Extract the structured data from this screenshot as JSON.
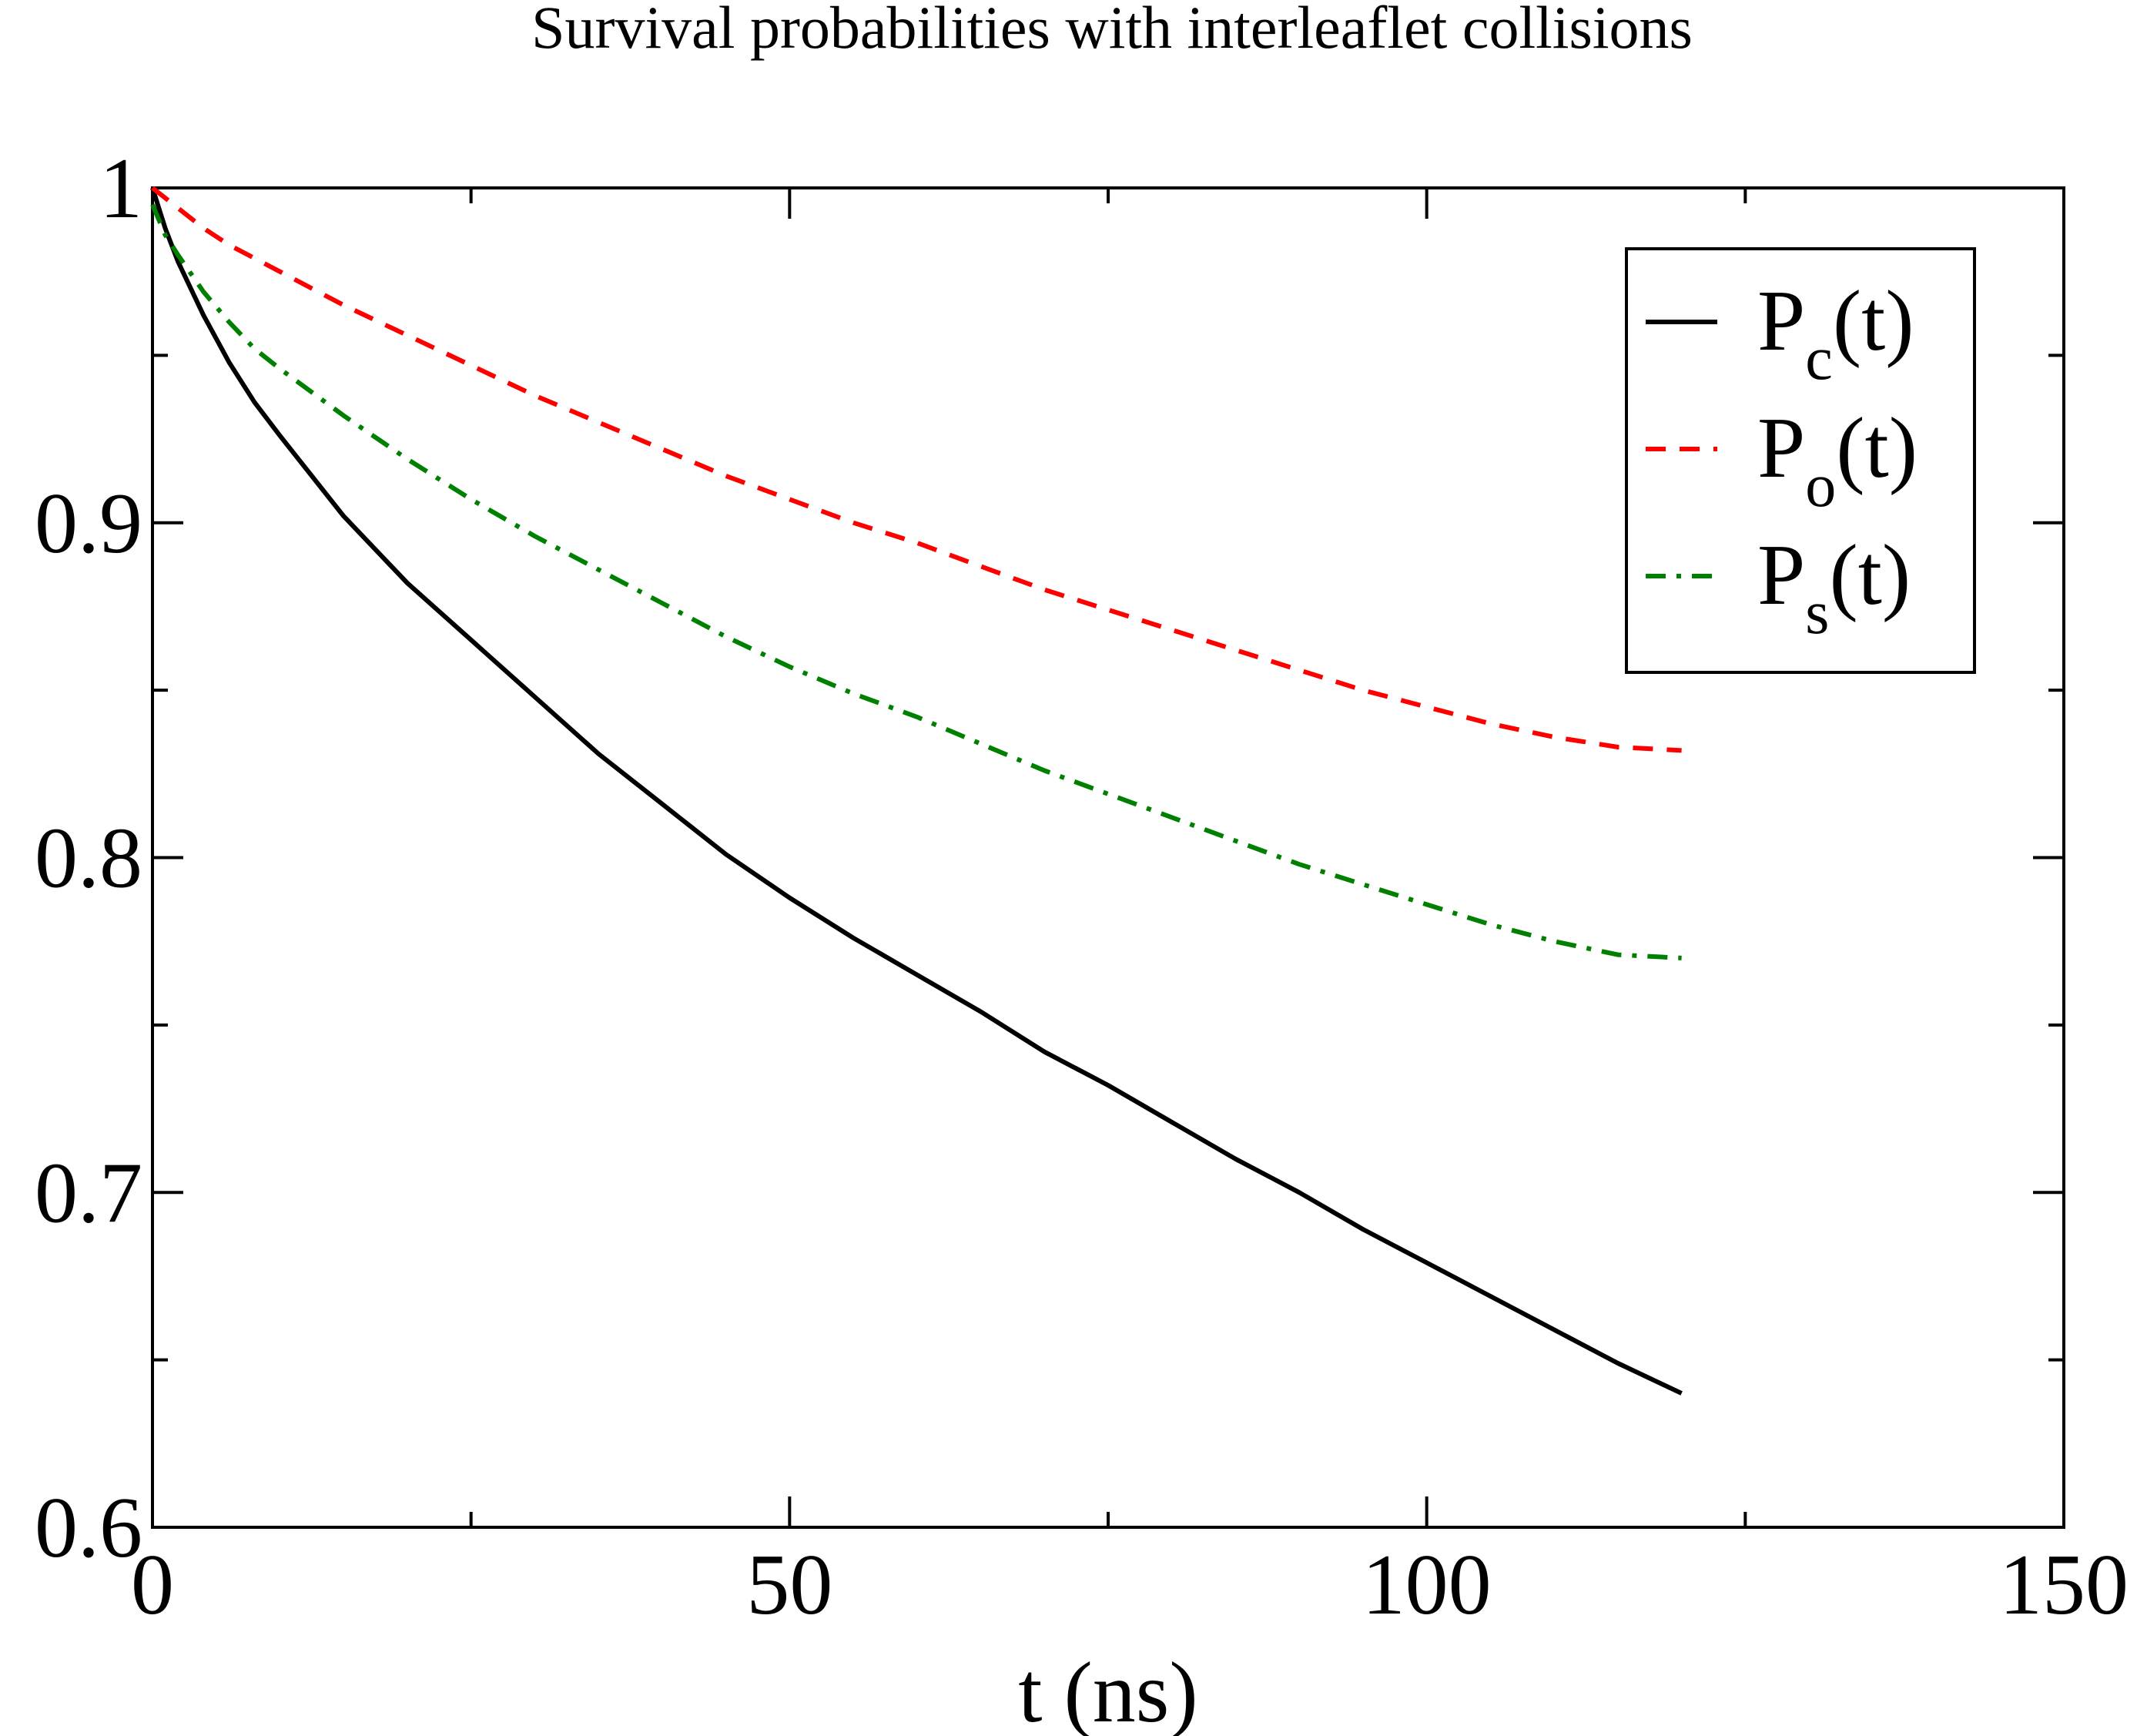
{
  "chart_data": {
    "type": "line",
    "title": "Survival probabilities with interleaflet collisions",
    "xlabel": "t (ns)",
    "ylabel": "",
    "xlim": [
      0,
      150
    ],
    "ylim": [
      0.6,
      1.0
    ],
    "x_major_ticks": [
      0,
      50,
      100,
      150
    ],
    "x_tick_labels": [
      "0",
      "50",
      "100",
      "150"
    ],
    "x_minor_ticks": [
      25,
      75,
      125
    ],
    "y_major_ticks": [
      0.6,
      0.7,
      0.8,
      0.9,
      1.0
    ],
    "y_tick_labels": [
      "0.6",
      "0.7",
      "0.8",
      "0.9",
      "1"
    ],
    "y_minor_ticks": [
      0.65,
      0.75,
      0.85,
      0.95
    ],
    "grid": false,
    "legend_position": "top-right",
    "series": [
      {
        "name": "Pc(t)",
        "label_main": "P",
        "label_sub": "c",
        "label_tail": "(t)",
        "color": "#000000",
        "dash": "solid",
        "x": [
          0,
          1,
          2,
          4,
          6,
          8,
          10,
          15,
          20,
          25,
          30,
          35,
          40,
          45,
          50,
          55,
          60,
          65,
          70,
          75,
          80,
          85,
          90,
          95,
          100,
          105,
          110,
          115,
          120
        ],
        "y": [
          1.0,
          0.988,
          0.978,
          0.962,
          0.948,
          0.936,
          0.926,
          0.902,
          0.882,
          0.865,
          0.848,
          0.831,
          0.816,
          0.801,
          0.788,
          0.776,
          0.765,
          0.754,
          0.742,
          0.732,
          0.721,
          0.71,
          0.7,
          0.689,
          0.679,
          0.669,
          0.659,
          0.649,
          0.64
        ]
      },
      {
        "name": "Po(t)",
        "label_main": "P",
        "label_sub": "o",
        "label_tail": "(t)",
        "color": "#ff0000",
        "dash": "dashed",
        "x": [
          0,
          1,
          2,
          4,
          6,
          8,
          10,
          15,
          20,
          25,
          30,
          35,
          40,
          45,
          50,
          55,
          60,
          65,
          70,
          75,
          80,
          85,
          90,
          95,
          100,
          105,
          110,
          115,
          120
        ],
        "y": [
          1.0,
          0.997,
          0.994,
          0.988,
          0.983,
          0.979,
          0.975,
          0.965,
          0.956,
          0.947,
          0.938,
          0.93,
          0.922,
          0.914,
          0.907,
          0.9,
          0.894,
          0.887,
          0.88,
          0.874,
          0.868,
          0.862,
          0.856,
          0.85,
          0.845,
          0.84,
          0.836,
          0.833,
          0.832
        ]
      },
      {
        "name": "Ps(t)",
        "label_main": "P",
        "label_sub": "s",
        "label_tail": "(t)",
        "color": "#008000",
        "dash": "dashdot",
        "x": [
          0,
          1,
          2,
          4,
          6,
          8,
          10,
          15,
          20,
          25,
          30,
          35,
          40,
          45,
          50,
          55,
          60,
          65,
          70,
          75,
          80,
          85,
          90,
          95,
          100,
          105,
          110,
          115,
          120
        ],
        "y": [
          0.995,
          0.986,
          0.98,
          0.969,
          0.96,
          0.952,
          0.946,
          0.932,
          0.919,
          0.907,
          0.896,
          0.886,
          0.876,
          0.866,
          0.857,
          0.849,
          0.842,
          0.834,
          0.826,
          0.819,
          0.812,
          0.805,
          0.798,
          0.792,
          0.786,
          0.78,
          0.775,
          0.771,
          0.77
        ]
      }
    ]
  }
}
